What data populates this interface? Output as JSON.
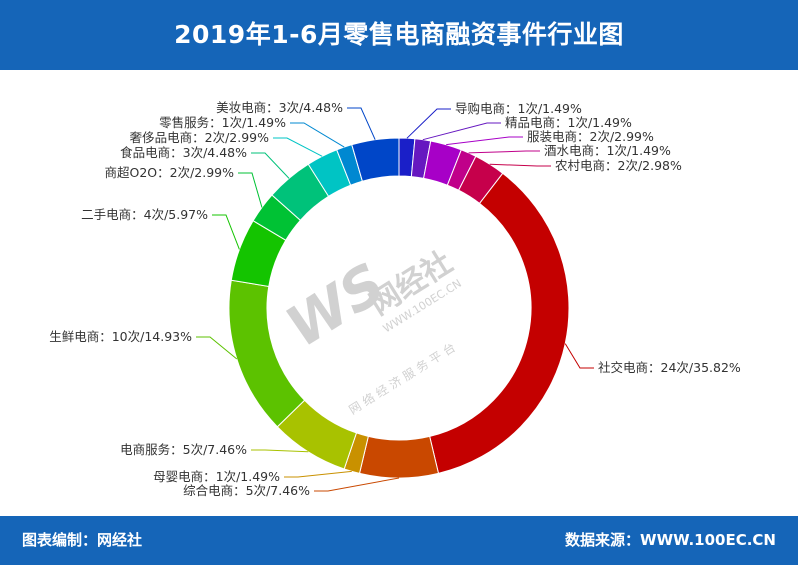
{
  "header": {
    "title": "2019年1-6月零售电商融资事件行业图"
  },
  "footer": {
    "left": "图表编制：网经社",
    "right": "数据来源：WWW.100EC.CN"
  },
  "watermark": {
    "logo_letters": "WS",
    "brand": "网经社",
    "url": "WWW.100EC.CN",
    "subtitle": "网 络 经 济 服 务 平 台"
  },
  "chart_data": {
    "type": "pie",
    "style": "donut",
    "unit": "次",
    "slices": [
      {
        "name": "导购电商",
        "count": 1,
        "percent": 1.49,
        "color": "#1a1fc8",
        "label": "导购电商：1次/1.49%"
      },
      {
        "name": "精品电商",
        "count": 1,
        "percent": 1.49,
        "color": "#6618c0",
        "label": "精品电商：1次/1.49%"
      },
      {
        "name": "服装电商",
        "count": 2,
        "percent": 2.99,
        "color": "#a700c7",
        "label": "服装电商：2次/2.99%"
      },
      {
        "name": "酒水电商",
        "count": 1,
        "percent": 1.49,
        "color": "#c0008a",
        "label": "酒水电商：1次/1.49%"
      },
      {
        "name": "农村电商",
        "count": 2,
        "percent": 2.98,
        "color": "#c6004b",
        "label": "农村电商：2次/2.98%"
      },
      {
        "name": "社交电商",
        "count": 24,
        "percent": 35.82,
        "color": "#c40000",
        "label": "社交电商：24次/35.82%"
      },
      {
        "name": "综合电商",
        "count": 5,
        "percent": 7.46,
        "color": "#c94800",
        "label": "综合电商：5次/7.46%"
      },
      {
        "name": "母婴电商",
        "count": 1,
        "percent": 1.49,
        "color": "#c99100",
        "label": "母婴电商：1次/1.49%"
      },
      {
        "name": "电商服务",
        "count": 5,
        "percent": 7.46,
        "color": "#a8c200",
        "label": "电商服务：5次/7.46%"
      },
      {
        "name": "生鲜电商",
        "count": 10,
        "percent": 14.93,
        "color": "#5cc200",
        "label": "生鲜电商：10次/14.93%"
      },
      {
        "name": "二手电商",
        "count": 4,
        "percent": 5.97,
        "color": "#14c400",
        "label": "二手电商：4次/5.97%"
      },
      {
        "name": "商超O2O",
        "count": 2,
        "percent": 2.99,
        "color": "#00c234",
        "label": "商超O2O：2次/2.99%"
      },
      {
        "name": "食品电商",
        "count": 3,
        "percent": 4.48,
        "color": "#00c27a",
        "label": "食品电商：3次/4.48%"
      },
      {
        "name": "奢侈品电商",
        "count": 2,
        "percent": 2.99,
        "color": "#00c4c4",
        "label": "奢侈品电商：2次/2.99%"
      },
      {
        "name": "零售服务",
        "count": 1,
        "percent": 1.49,
        "color": "#0088d1",
        "label": "零售服务：1次/1.49%"
      },
      {
        "name": "美妆电商",
        "count": 3,
        "percent": 4.48,
        "color": "#0046c8",
        "label": "美妆电商：3次/4.48%"
      }
    ]
  }
}
